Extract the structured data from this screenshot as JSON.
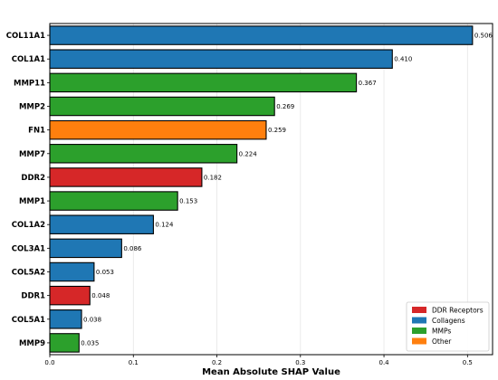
{
  "chart_data": {
    "type": "bar",
    "orientation": "horizontal",
    "xlabel": "Mean Absolute SHAP Value",
    "xlim": [
      0,
      0.53
    ],
    "xticks": [
      "0.0",
      "0.1",
      "0.2",
      "0.3",
      "0.4",
      "0.5"
    ],
    "grid": "vertical",
    "legend_position": "bottom-right",
    "groups": [
      {
        "name": "DDR Receptors",
        "color": "#d62728"
      },
      {
        "name": "Collagens",
        "color": "#1f77b4"
      },
      {
        "name": "MMPs",
        "color": "#2ca02c"
      },
      {
        "name": "Other",
        "color": "#ff7f0e"
      }
    ],
    "bars": [
      {
        "name": "COL11A1",
        "value": 0.506,
        "label": "0.506",
        "group": "Collagens"
      },
      {
        "name": "COL1A1",
        "value": 0.41,
        "label": "0.410",
        "group": "Collagens"
      },
      {
        "name": "MMP11",
        "value": 0.367,
        "label": "0.367",
        "group": "MMPs"
      },
      {
        "name": "MMP2",
        "value": 0.269,
        "label": "0.269",
        "group": "MMPs"
      },
      {
        "name": "FN1",
        "value": 0.259,
        "label": "0.259",
        "group": "Other"
      },
      {
        "name": "MMP7",
        "value": 0.224,
        "label": "0.224",
        "group": "MMPs"
      },
      {
        "name": "DDR2",
        "value": 0.182,
        "label": "0.182",
        "group": "DDR Receptors"
      },
      {
        "name": "MMP1",
        "value": 0.153,
        "label": "0.153",
        "group": "MMPs"
      },
      {
        "name": "COL1A2",
        "value": 0.124,
        "label": "0.124",
        "group": "Collagens"
      },
      {
        "name": "COL3A1",
        "value": 0.086,
        "label": "0.086",
        "group": "Collagens"
      },
      {
        "name": "COL5A2",
        "value": 0.053,
        "label": "0.053",
        "group": "Collagens"
      },
      {
        "name": "DDR1",
        "value": 0.048,
        "label": "0.048",
        "group": "DDR Receptors"
      },
      {
        "name": "COL5A1",
        "value": 0.038,
        "label": "0.038",
        "group": "Collagens"
      },
      {
        "name": "MMP9",
        "value": 0.035,
        "label": "0.035",
        "group": "MMPs"
      }
    ]
  }
}
